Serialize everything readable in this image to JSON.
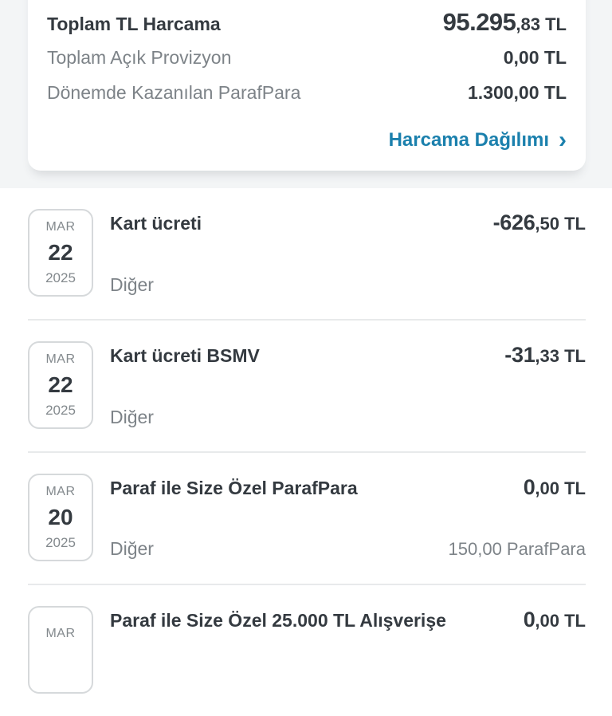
{
  "summary": {
    "rows": [
      {
        "label": "Toplam TL Harcama",
        "value_main": "95.295",
        "value_frac": ",83 TL"
      },
      {
        "label": "Toplam Açık Provizyon",
        "value": "0,00 TL"
      },
      {
        "label": "Dönemde Kazanılan ParafPara",
        "value": "1.300,00 TL"
      }
    ],
    "link": {
      "label": "Harcama Dağılımı",
      "chevron": "›"
    }
  },
  "transactions": [
    {
      "date": {
        "month": "MAR",
        "day": "22",
        "year": "2025"
      },
      "title": "Kart ücreti",
      "amount_main": "-626",
      "amount_frac": ",50 TL",
      "category": "Diğer",
      "right_note": ""
    },
    {
      "date": {
        "month": "MAR",
        "day": "22",
        "year": "2025"
      },
      "title": "Kart ücreti BSMV",
      "amount_main": "-31",
      "amount_frac": ",33 TL",
      "category": "Diğer",
      "right_note": ""
    },
    {
      "date": {
        "month": "MAR",
        "day": "20",
        "year": "2025"
      },
      "title": "Paraf ile Size Özel ParafPara",
      "amount_main": "0",
      "amount_frac": ",00 TL",
      "category": "Diğer",
      "right_note": "150,00 ParafPara"
    },
    {
      "date": {
        "month": "MAR",
        "day": "",
        "year": ""
      },
      "title": "Paraf ile Size Özel 25.000 TL Alışverişe",
      "amount_main": "0",
      "amount_frac": ",00 TL",
      "category": "",
      "right_note": ""
    }
  ],
  "colors": {
    "accent": "#1b80ad",
    "text_dark": "#343a40",
    "text_gray": "#7d8388",
    "divider": "#e8eaeb"
  }
}
